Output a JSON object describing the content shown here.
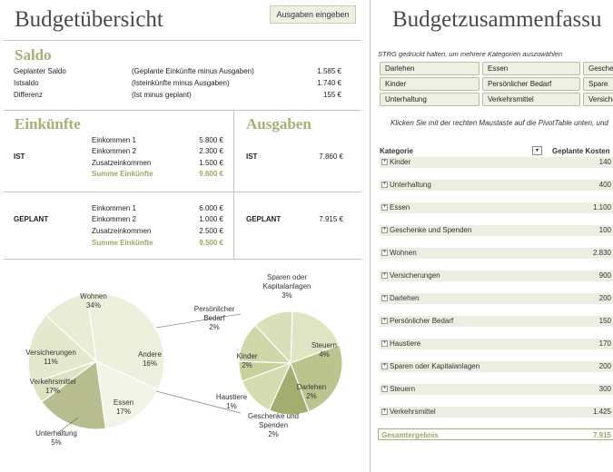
{
  "left": {
    "title": "Budgetübersicht",
    "expenses_button": "Ausgaben eingeben",
    "saldo": {
      "title": "Saldo",
      "rows": [
        {
          "label": "Geplanter Saldo",
          "desc": "(Geplante Einkünfte minus Ausgaben)",
          "value": "1.585 €"
        },
        {
          "label": "Istsaldo",
          "desc": "(Isteinkünfte minus Ausgaben)",
          "value": "1.740 €"
        },
        {
          "label": "Differenz",
          "desc": "(Ist minus geplant)",
          "value": "155 €"
        }
      ]
    },
    "income": {
      "title": "Einkünfte",
      "ist": {
        "label": "IST",
        "items": [
          {
            "label": "Einkommen 1",
            "value": "5.800 €"
          },
          {
            "label": "Einkommen 2",
            "value": "2.300 €"
          },
          {
            "label": "Zusatzeinkommen",
            "value": "1.500 €"
          }
        ],
        "sum_label": "Summe Einkünfte",
        "sum_value": "9.600 €"
      },
      "planned": {
        "label": "GEPLANT",
        "items": [
          {
            "label": "Einkommen 1",
            "value": "6.000 €"
          },
          {
            "label": "Einkommen 2",
            "value": "1.000 €"
          },
          {
            "label": "Zusatzeinkommen",
            "value": "2.500 €"
          }
        ],
        "sum_label": "Summe Einkünfte",
        "sum_value": "9.500 €"
      }
    },
    "expenses": {
      "title": "Ausgaben",
      "ist_label": "IST",
      "ist_value": "7.860 €",
      "planned_label": "GEPLANT",
      "planned_value": "7.915 €"
    }
  },
  "right": {
    "title": "Budgetzusammenfassu",
    "slicer_header": "STRG gedrückt halten, um mehrere Kategorien auszuwählen",
    "slicer_buttons": [
      [
        "Darlehen",
        "Essen",
        "Gesche"
      ],
      [
        "Kinder",
        "Persönlicher Bedarf",
        "Spare"
      ],
      [
        "Unterhaltung",
        "Verkehrsmittel",
        "Versiche"
      ]
    ],
    "hint": "Klicken Sie mit der rechten Maustaste auf die PivotTable unten, und",
    "pivot": {
      "col_category": "Kategorie",
      "col_planned": "Geplante Kosten",
      "filter_icon": "dropdown-arrow-icon",
      "expand_icon": "plus-box-icon",
      "rows": [
        {
          "label": "Kinder",
          "value": "140"
        },
        {
          "label": "Unterhaltung",
          "value": "400"
        },
        {
          "label": "Essen",
          "value": "1.100"
        },
        {
          "label": "Geschenke und Spenden",
          "value": "100"
        },
        {
          "label": "Wohnen",
          "value": "2.830"
        },
        {
          "label": "Versicherungen",
          "value": "900"
        },
        {
          "label": "Darlehen",
          "value": "200"
        },
        {
          "label": "Persönlicher Bedarf",
          "value": "150"
        },
        {
          "label": "Haustiere",
          "value": "170"
        },
        {
          "label": "Sparen oder Kapitalanlagen",
          "value": "200"
        },
        {
          "label": "Steuern",
          "value": "300"
        },
        {
          "label": "Verkehrsmittel",
          "value": "1.425"
        }
      ],
      "total_label": "Gesamtergebnis",
      "total_value": "7.915"
    }
  },
  "chart_data": [
    {
      "type": "pie",
      "slices": [
        {
          "label": "Wohnen",
          "percent": 34,
          "text": "34%",
          "color": "#eef0de"
        },
        {
          "label": "Andere",
          "percent": 16,
          "text": "16%",
          "color": "#f3f4e8"
        },
        {
          "label": "Essen",
          "percent": 17,
          "text": "17%",
          "color": "#b7bd8f"
        },
        {
          "label": "Unterhaltung",
          "percent": 5,
          "text": "5%",
          "color": "#dde3c2"
        },
        {
          "label": "Verkehrsmittel",
          "percent": 17,
          "text": "17%",
          "color": "#e4e9cd"
        },
        {
          "label": "Versicherungen",
          "percent": 11,
          "text": "11%",
          "color": "#e9edd6"
        }
      ]
    },
    {
      "type": "pie",
      "slices": [
        {
          "label": "Sparen oder Kapitalanlagen",
          "percent": 3,
          "text": "3%",
          "color": "#dfe5c2"
        },
        {
          "label": "Steuern",
          "percent": 4,
          "text": "4%",
          "color": "#bcc48e"
        },
        {
          "label": "Darlehen",
          "percent": 2,
          "text": "2%",
          "color": "#a3ad6f"
        },
        {
          "label": "Geschenke und Spenden",
          "percent": 2,
          "text": "2%",
          "color": "#d5dcb1"
        },
        {
          "label": "Haustiere",
          "percent": 1,
          "text": "1%",
          "color": "#c8d09e"
        },
        {
          "label": "Kinder",
          "percent": 2,
          "text": "2%",
          "color": "#cfd6a8"
        },
        {
          "label": "Persönlicher Bedarf",
          "percent": 2,
          "text": "2%",
          "color": "#d9dfb9"
        }
      ]
    }
  ]
}
